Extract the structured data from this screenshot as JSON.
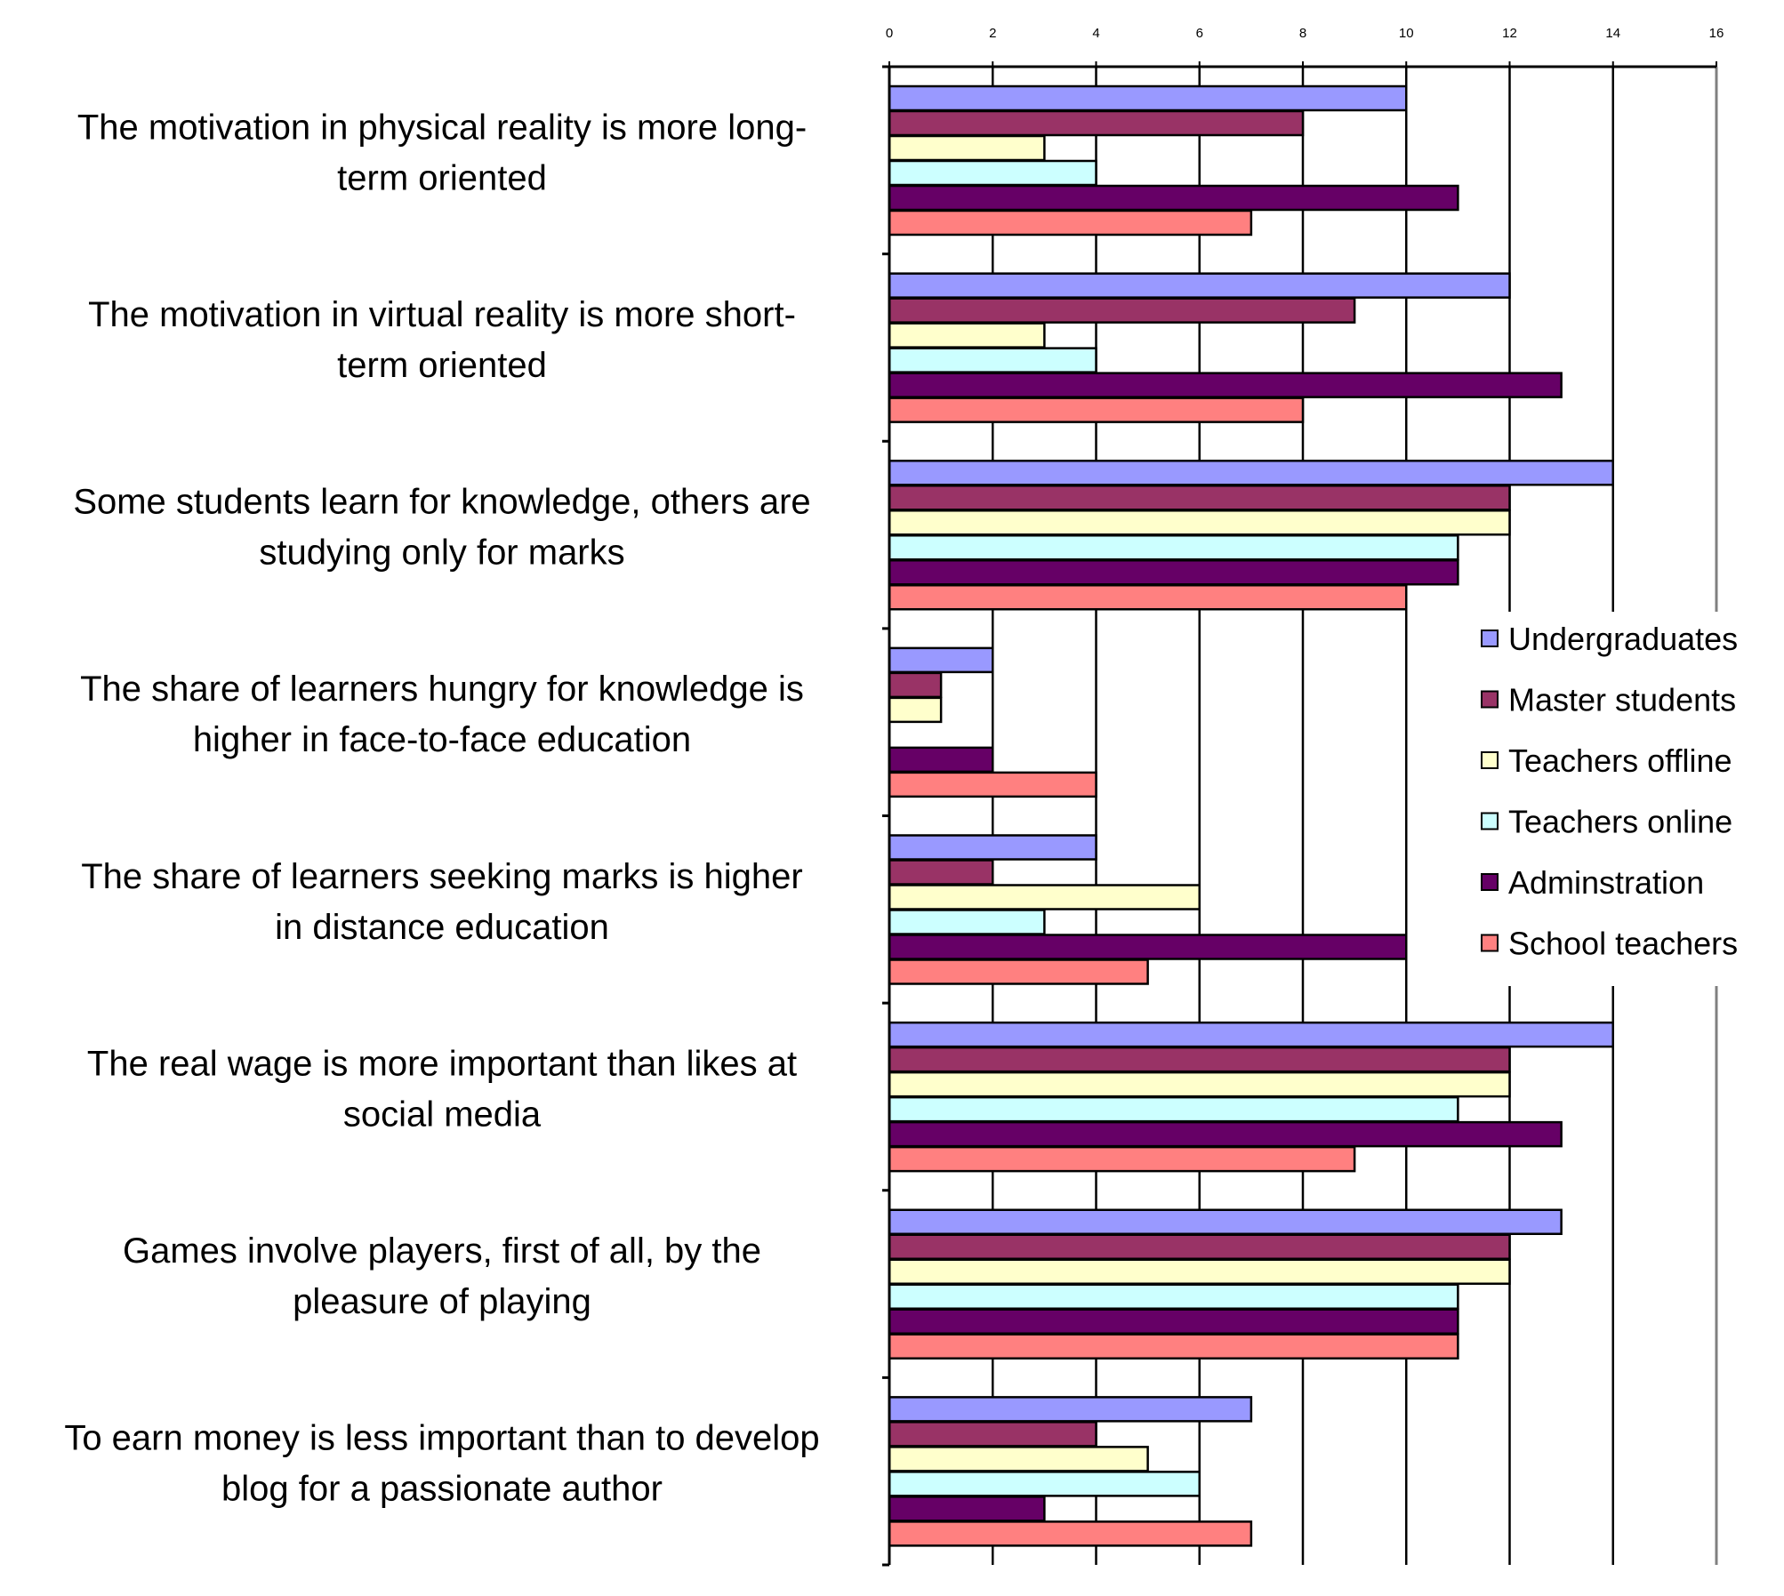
{
  "chart_data": {
    "type": "bar",
    "orientation": "horizontal",
    "categories": [
      [
        "The motivation in physical reality is more long-",
        "term oriented"
      ],
      [
        "The motivation in virtual reality is more short-",
        "term oriented"
      ],
      [
        "Some students learn for knowledge, others are",
        "studying only for marks"
      ],
      [
        "The share of learners hungry for knowledge is",
        "higher in face-to-face education"
      ],
      [
        "The share of learners seeking marks is higher",
        "in distance education"
      ],
      [
        "The real wage is more important than likes at",
        "social media"
      ],
      [
        "Games involve players, first of all, by the",
        "pleasure of playing"
      ],
      [
        "To earn money is less important than to develop",
        "blog for a passionate author"
      ]
    ],
    "series": [
      {
        "name": "Undergraduates",
        "color": "#9999ff",
        "values": [
          10,
          12,
          14,
          2,
          4,
          14,
          13,
          7
        ]
      },
      {
        "name": "Master students",
        "color": "#993366",
        "values": [
          8,
          9,
          12,
          1,
          2,
          12,
          12,
          4
        ]
      },
      {
        "name": "Teachers offline",
        "color": "#ffffcc",
        "values": [
          3,
          3,
          12,
          1,
          6,
          12,
          12,
          5
        ]
      },
      {
        "name": "Teachers online",
        "color": "#ccffff",
        "values": [
          4,
          4,
          11,
          0,
          3,
          11,
          11,
          6
        ]
      },
      {
        "name": "Adminstration",
        "color": "#660066",
        "values": [
          11,
          13,
          11,
          2,
          10,
          13,
          11,
          3
        ]
      },
      {
        "name": "School teachers",
        "color": "#ff8080",
        "values": [
          7,
          8,
          10,
          4,
          5,
          9,
          11,
          7
        ]
      }
    ],
    "xlim": [
      0,
      16
    ],
    "xticks": [
      0,
      2,
      4,
      6,
      8,
      10,
      12,
      14,
      16
    ],
    "x_axis_position": "top",
    "grid": "vertical",
    "legend_position": "right",
    "title": "",
    "xlabel": "",
    "ylabel": ""
  }
}
